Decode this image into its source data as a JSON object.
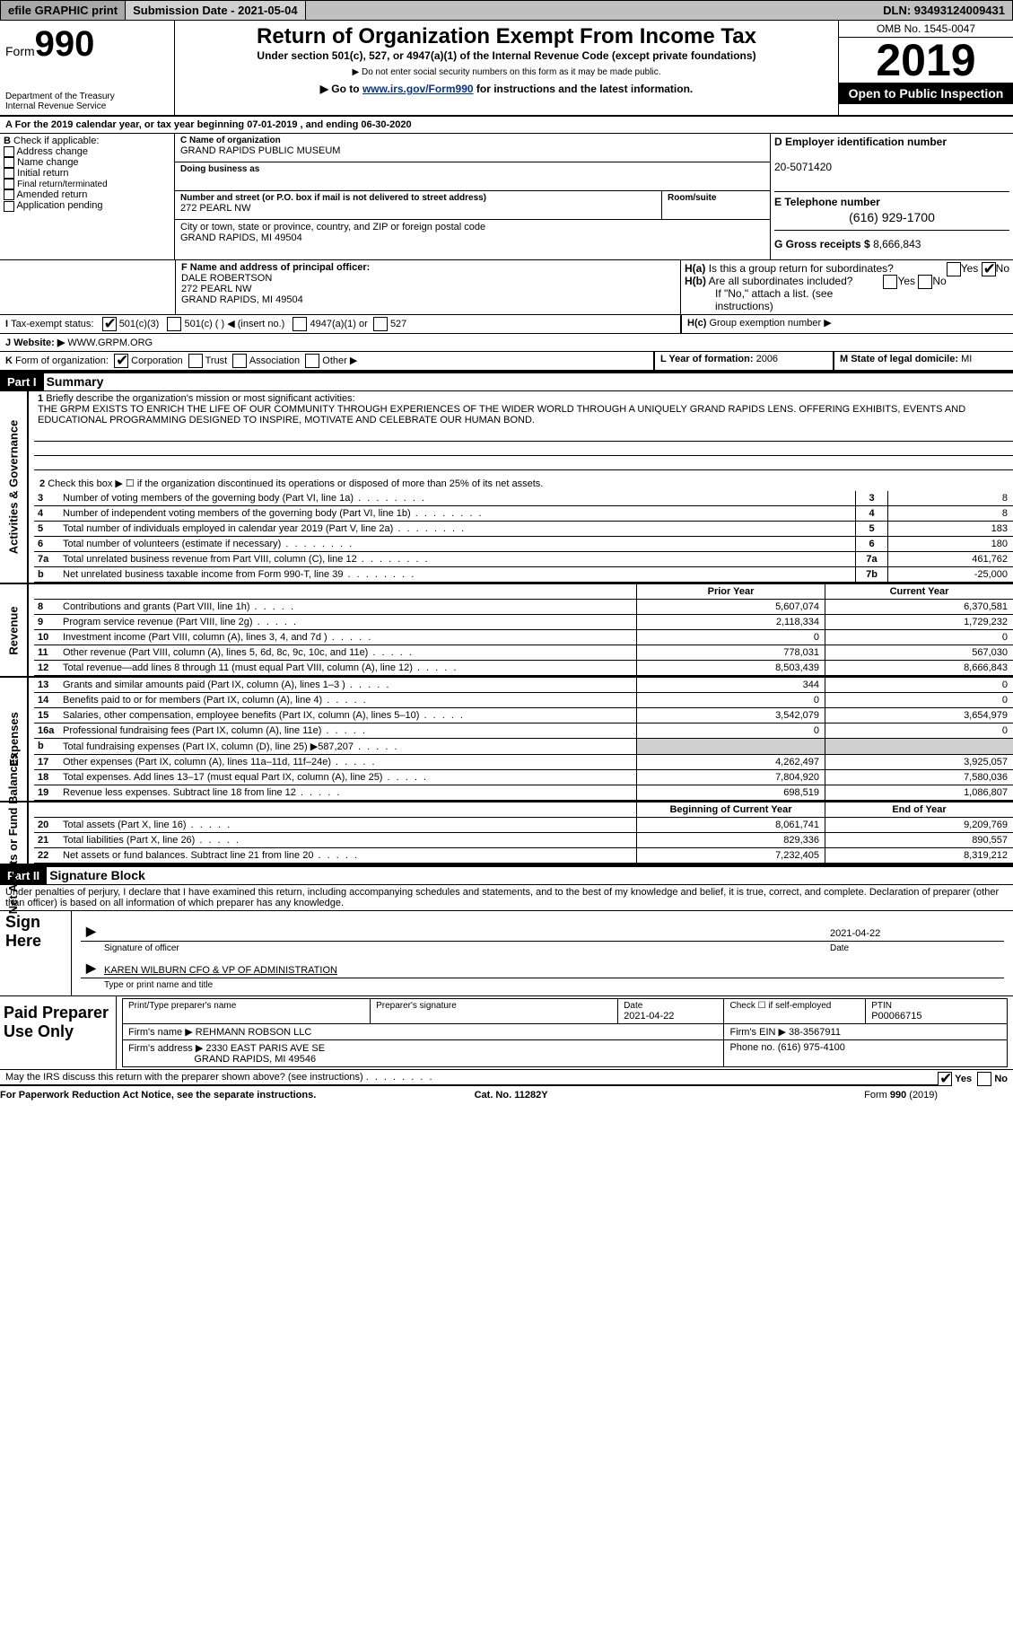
{
  "topbar": {
    "efile": "efile GRAPHIC print",
    "submission": "Submission Date - 2021-05-04",
    "dln": "DLN: 93493124009431"
  },
  "header": {
    "form_prefix": "Form",
    "form_number": "990",
    "department": "Department of the Treasury",
    "irs": "Internal Revenue Service",
    "title": "Return of Organization Exempt From Income Tax",
    "subtitle": "Under section 501(c), 527, or 4947(a)(1) of the Internal Revenue Code (except private foundations)",
    "nossn": "▶ Do not enter social security numbers on this form as it may be made public.",
    "goto_prefix": "▶ Go to ",
    "goto_link": "www.irs.gov/Form990",
    "goto_suffix": " for instructions and the latest information.",
    "omb": "OMB No. 1545-0047",
    "year": "2019",
    "open": "Open to Public Inspection"
  },
  "periodA": "For the 2019 calendar year, or tax year beginning 07-01-2019     , and ending 06-30-2020",
  "blockB": {
    "label": "Check if applicable:",
    "items": [
      "Address change",
      "Name change",
      "Initial return",
      "Final return/terminated",
      "Amended return",
      "Application pending"
    ]
  },
  "blockC": {
    "name_lbl": "C Name of organization",
    "name": "GRAND RAPIDS PUBLIC MUSEUM",
    "dba_lbl": "Doing business as",
    "street_lbl": "Number and street (or P.O. box if mail is not delivered to street address)",
    "room_lbl": "Room/suite",
    "street": "272 PEARL NW",
    "city_lbl": "City or town, state or province, country, and ZIP or foreign postal code",
    "city": "GRAND RAPIDS, MI  49504"
  },
  "blockD": {
    "lbl": "D Employer identification number",
    "val": "20-5071420"
  },
  "blockE": {
    "lbl": "E Telephone number",
    "val": "(616) 929-1700"
  },
  "blockG": {
    "lbl": "G Gross receipts $",
    "val": "8,666,843"
  },
  "blockF": {
    "lbl": "F  Name and address of principal officer:",
    "name": "DALE ROBERTSON",
    "street": "272 PEARL NW",
    "city": "GRAND RAPIDS, MI  49504"
  },
  "blockH": {
    "a_lbl": "Is this a group return for subordinates?",
    "b_lbl": "Are all subordinates included?",
    "b_note": "If \"No,\" attach a list. (see instructions)",
    "c_lbl": "Group exemption number ▶"
  },
  "blockI": {
    "lbl": "Tax-exempt status:",
    "opt1": "501(c)(3)",
    "opt2": "501(c) (  ) ◀ (insert no.)",
    "opt3": "4947(a)(1) or",
    "opt4": "527"
  },
  "blockJ": {
    "lbl": "Website: ▶",
    "val": "WWW.GRPM.ORG"
  },
  "blockK": {
    "lbl": "Form of organization:",
    "corp": "Corporation",
    "trust": "Trust",
    "assoc": "Association",
    "other": "Other ▶"
  },
  "blockL": {
    "lbl": "L Year of formation:",
    "val": "2006"
  },
  "blockM": {
    "lbl": "M State of legal domicile:",
    "val": "MI"
  },
  "part1": {
    "num": "Part I",
    "title": "Summary",
    "q1": "Briefly describe the organization's mission or most significant activities:",
    "mission": "THE GRPM EXISTS TO ENRICH THE LIFE OF OUR COMMUNITY THROUGH EXPERIENCES OF THE WIDER WORLD THROUGH A UNIQUELY GRAND RAPIDS LENS. OFFERING EXHIBITS, EVENTS AND EDUCATIONAL PROGRAMMING DESIGNED TO INSPIRE, MOTIVATE AND CELEBRATE OUR HUMAN BOND.",
    "q2": "Check this box ▶ ☐  if the organization discontinued its operations or disposed of more than 25% of its net assets.",
    "vtab_gov": "Activities & Governance",
    "vtab_rev": "Revenue",
    "vtab_exp": "Expenses",
    "vtab_net": "Net Assets or Fund Balances",
    "rows_gov": [
      {
        "n": "3",
        "d": "Number of voting members of the governing body (Part VI, line 1a)",
        "b": "3",
        "v": "8"
      },
      {
        "n": "4",
        "d": "Number of independent voting members of the governing body (Part VI, line 1b)",
        "b": "4",
        "v": "8"
      },
      {
        "n": "5",
        "d": "Total number of individuals employed in calendar year 2019 (Part V, line 2a)",
        "b": "5",
        "v": "183"
      },
      {
        "n": "6",
        "d": "Total number of volunteers (estimate if necessary)",
        "b": "6",
        "v": "180"
      },
      {
        "n": "7a",
        "d": "Total unrelated business revenue from Part VIII, column (C), line 12",
        "b": "7a",
        "v": "461,762"
      },
      {
        "n": "b",
        "d": "Net unrelated business taxable income from Form 990-T, line 39",
        "b": "7b",
        "v": "-25,000"
      }
    ],
    "hdr_prior": "Prior Year",
    "hdr_current": "Current Year",
    "rows_rev": [
      {
        "n": "8",
        "d": "Contributions and grants (Part VIII, line 1h)",
        "p": "5,607,074",
        "c": "6,370,581"
      },
      {
        "n": "9",
        "d": "Program service revenue (Part VIII, line 2g)",
        "p": "2,118,334",
        "c": "1,729,232"
      },
      {
        "n": "10",
        "d": "Investment income (Part VIII, column (A), lines 3, 4, and 7d )",
        "p": "0",
        "c": "0"
      },
      {
        "n": "11",
        "d": "Other revenue (Part VIII, column (A), lines 5, 6d, 8c, 9c, 10c, and 11e)",
        "p": "778,031",
        "c": "567,030"
      },
      {
        "n": "12",
        "d": "Total revenue—add lines 8 through 11 (must equal Part VIII, column (A), line 12)",
        "p": "8,503,439",
        "c": "8,666,843"
      }
    ],
    "rows_exp": [
      {
        "n": "13",
        "d": "Grants and similar amounts paid (Part IX, column (A), lines 1–3 )",
        "p": "344",
        "c": "0"
      },
      {
        "n": "14",
        "d": "Benefits paid to or for members (Part IX, column (A), line 4)",
        "p": "0",
        "c": "0"
      },
      {
        "n": "15",
        "d": "Salaries, other compensation, employee benefits (Part IX, column (A), lines 5–10)",
        "p": "3,542,079",
        "c": "3,654,979"
      },
      {
        "n": "16a",
        "d": "Professional fundraising fees (Part IX, column (A), line 11e)",
        "p": "0",
        "c": "0"
      },
      {
        "n": "b",
        "d": "Total fundraising expenses (Part IX, column (D), line 25) ▶587,207",
        "p": "",
        "c": "",
        "shade": true
      },
      {
        "n": "17",
        "d": "Other expenses (Part IX, column (A), lines 11a–11d, 11f–24e)",
        "p": "4,262,497",
        "c": "3,925,057"
      },
      {
        "n": "18",
        "d": "Total expenses. Add lines 13–17 (must equal Part IX, column (A), line 25)",
        "p": "7,804,920",
        "c": "7,580,036"
      },
      {
        "n": "19",
        "d": "Revenue less expenses. Subtract line 18 from line 12",
        "p": "698,519",
        "c": "1,086,807"
      }
    ],
    "hdr_boy": "Beginning of Current Year",
    "hdr_eoy": "End of Year",
    "rows_net": [
      {
        "n": "20",
        "d": "Total assets (Part X, line 16)",
        "p": "8,061,741",
        "c": "9,209,769"
      },
      {
        "n": "21",
        "d": "Total liabilities (Part X, line 26)",
        "p": "829,336",
        "c": "890,557"
      },
      {
        "n": "22",
        "d": "Net assets or fund balances. Subtract line 21 from line 20",
        "p": "7,232,405",
        "c": "8,319,212"
      }
    ]
  },
  "part2": {
    "num": "Part II",
    "title": "Signature Block",
    "decl": "Under penalties of perjury, I declare that I have examined this return, including accompanying schedules and statements, and to the best of my knowledge and belief, it is true, correct, and complete. Declaration of preparer (other than officer) is based on all information of which preparer has any knowledge.",
    "sign_here": "Sign Here",
    "sig_officer": "Signature of officer",
    "sig_date": "Date",
    "sig_date_val": "2021-04-22",
    "officer_name": "KAREN WILBURN  CFO & VP OF ADMINISTRATION",
    "type_name": "Type or print name and title",
    "paid_prep": "Paid Preparer Use Only",
    "prep_name_lbl": "Print/Type preparer's name",
    "prep_sig_lbl": "Preparer's signature",
    "prep_date_lbl": "Date",
    "prep_date_val": "2021-04-22",
    "self_emp": "Check ☐ if self-employed",
    "ptin_lbl": "PTIN",
    "ptin_val": "P00066715",
    "firm_name_lbl": "Firm's name    ▶",
    "firm_name": "REHMANN ROBSON LLC",
    "firm_ein_lbl": "Firm's EIN ▶",
    "firm_ein": "38-3567911",
    "firm_addr_lbl": "Firm's address ▶",
    "firm_addr1": "2330 EAST PARIS AVE SE",
    "firm_addr2": "GRAND RAPIDS, MI  49546",
    "phone_lbl": "Phone no.",
    "phone_val": "(616) 975-4100",
    "discuss": "May the IRS discuss this return with the preparer shown above? (see instructions)"
  },
  "footer": {
    "left": "For Paperwork Reduction Act Notice, see the separate instructions.",
    "mid": "Cat. No. 11282Y",
    "right": "Form 990 (2019)"
  },
  "yes": "Yes",
  "no": "No"
}
